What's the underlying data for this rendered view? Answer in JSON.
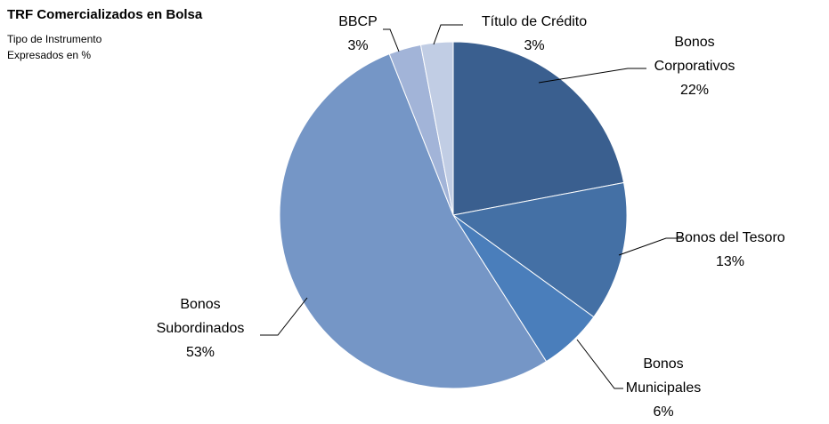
{
  "chart_data": {
    "type": "pie",
    "title": "TRF Comercializados en Bolsa",
    "subtitle": [
      "Tipo de Instrumento",
      "Expresados en %"
    ],
    "categories": [
      "Bonos Corporativos",
      "Bonos del Tesoro",
      "Bonos Municipales",
      "Bonos Subordinados",
      "BBCP",
      "Título de Crédito"
    ],
    "values": [
      22,
      13,
      6,
      53,
      3,
      3
    ],
    "value_labels": [
      "22%",
      "13%",
      "6%",
      "53%",
      "3%",
      "3%"
    ],
    "colors": [
      "#3a5f8f",
      "#4470a5",
      "#4a7ebb",
      "#7596c6",
      "#a2b4d8",
      "#c1cde4"
    ]
  }
}
